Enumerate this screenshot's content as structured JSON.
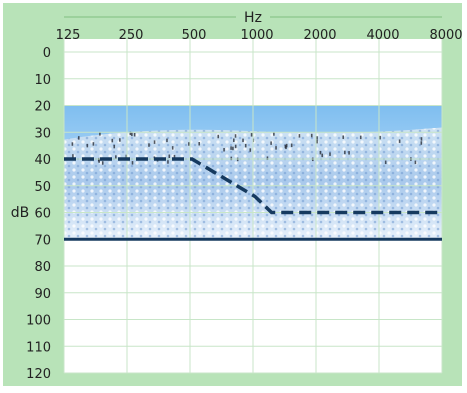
{
  "chart_data": {
    "type": "line",
    "xlabel": "Hz",
    "ylabel": "dB",
    "x_categories": [
      "125",
      "250",
      "500",
      "1000",
      "2000",
      "4000",
      "8000"
    ],
    "y_ticks": [
      "0",
      "10",
      "20",
      "30",
      "40",
      "50",
      "60",
      "70",
      "80",
      "90",
      "100",
      "110",
      "120"
    ],
    "ylim": [
      0,
      120
    ],
    "y_inverted": true,
    "grid": true,
    "series": [
      {
        "style": "dashed",
        "x": [
          125,
          250,
          500,
          1000,
          1200,
          2000,
          4000,
          8000
        ],
        "values": [
          40,
          40,
          40,
          54,
          60,
          60,
          60,
          60
        ]
      }
    ],
    "reference_lines": [
      {
        "value": 70,
        "style": "solid"
      }
    ],
    "shaded_band": {
      "from": 20,
      "to": 70,
      "fill": "photo of flowering hillside with visitors"
    },
    "colors": {
      "frame": "#b8e3b8",
      "line": "#163a5f",
      "grid": "#c8e6c8",
      "sky": "#a9d3f2",
      "flowers": "#bcd7ef"
    }
  }
}
